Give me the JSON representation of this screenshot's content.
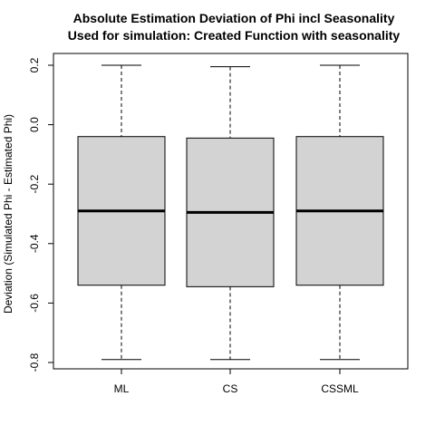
{
  "chart_data": {
    "type": "boxplot",
    "title": "Absolute Estimation Deviation of Phi incl Seasonality",
    "subtitle": "Used for simulation: Created Function with seasonality",
    "xlabel": "",
    "ylabel": "Deviation (Simulated Phi - Estimated Phi)",
    "categories": [
      "ML",
      "CS",
      "CSSML"
    ],
    "boxes": [
      {
        "category": "ML",
        "min": -0.79,
        "q1": -0.54,
        "median": -0.29,
        "q3": -0.04,
        "max": 0.2
      },
      {
        "category": "CS",
        "min": -0.79,
        "q1": -0.545,
        "median": -0.295,
        "q3": -0.045,
        "max": 0.195
      },
      {
        "category": "CSSML",
        "min": -0.79,
        "q1": -0.54,
        "median": -0.29,
        "q3": -0.04,
        "max": 0.2
      }
    ],
    "y_ticks": [
      "-0.8",
      "-0.6",
      "-0.4",
      "-0.2",
      "0.0",
      "0.2"
    ],
    "y_tick_values": [
      -0.8,
      -0.6,
      -0.4,
      -0.2,
      0.0,
      0.2
    ],
    "ylim": [
      -0.83,
      0.22
    ],
    "grid": false,
    "box_fill": "#d3d3d3"
  }
}
